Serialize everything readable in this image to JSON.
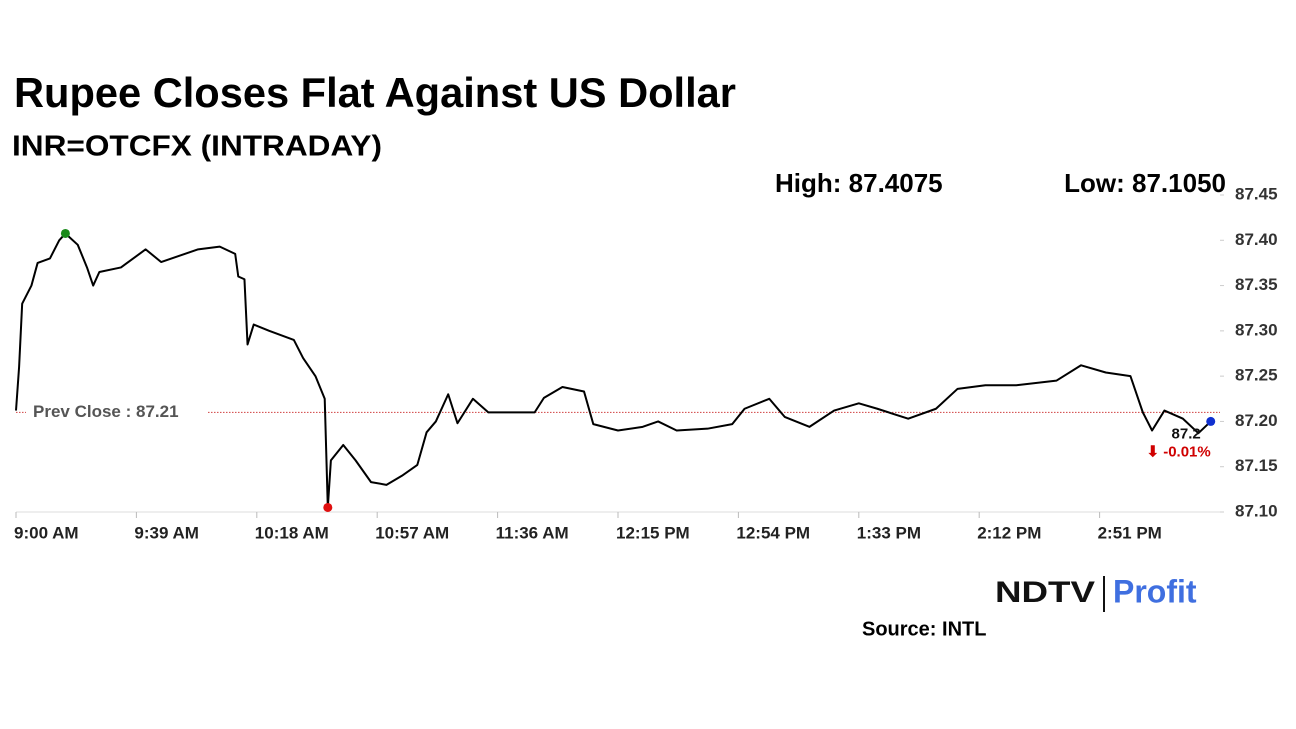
{
  "chart_data": {
    "type": "line",
    "title": "Rupee Closes Flat Against US Dollar",
    "subtitle": "INR=OTCFX (INTRADAY)",
    "high_label": "High: 87.4075",
    "low_label": "Low: 87.1050",
    "prev_close": {
      "value": 87.21,
      "label": "Prev Close : 87.21",
      "color": "#d04040"
    },
    "last_label": "87.2",
    "change_label": "⬇ -0.01%",
    "change_color": "#d00000",
    "high_color": "#1a8a1a",
    "low_color": "#e01010",
    "last_color": "#1030d0",
    "source": "Source: INTL",
    "logo": [
      "NDTV",
      "Profit"
    ],
    "series": [
      {
        "name": "INR=OTCFX",
        "color": "#000000",
        "x": [
          "9:00 AM",
          "9:01 AM",
          "9:02 AM",
          "9:05 AM",
          "9:07 AM",
          "9:11 AM",
          "9:14 AM",
          "9:16 AM",
          "9:20 AM",
          "9:23 AM",
          "9:25 AM",
          "9:27 AM",
          "9:34 AM",
          "9:42 AM",
          "9:47 AM",
          "9:53 AM",
          "9:59 AM",
          "10:06 AM",
          "10:11 AM",
          "10:12 AM",
          "10:14 AM",
          "10:15 AM",
          "10:17 AM",
          "10:22 AM",
          "10:30 AM",
          "10:33 AM",
          "10:37 AM",
          "10:40 AM",
          "10:41 AM",
          "10:42 AM",
          "10:46 AM",
          "10:50 AM",
          "10:55 AM",
          "11:00 AM",
          "11:05 AM",
          "11:10 AM",
          "11:13 AM",
          "11:16 AM",
          "11:20 AM",
          "11:23 AM",
          "11:28 AM",
          "11:33 AM",
          "11:39 AM",
          "11:48 AM",
          "11:51 AM",
          "11:57 AM",
          "12:04 PM",
          "12:07 PM",
          "12:15 PM",
          "12:23 PM",
          "12:28 PM",
          "12:34 PM",
          "12:44 PM",
          "12:52 PM",
          "12:56 PM",
          "1:04 PM",
          "1:09 PM",
          "1:17 PM",
          "1:25 PM",
          "1:33 PM",
          "1:39 PM",
          "1:49 PM",
          "1:58 PM",
          "2:05 PM",
          "2:14 PM",
          "2:24 PM",
          "2:37 PM",
          "2:45 PM",
          "2:53 PM",
          "3:01 PM",
          "3:05 PM",
          "3:08 PM",
          "3:12 PM",
          "3:18 PM",
          "3:23 PM",
          "3:27 PM"
        ],
        "values": [
          87.212,
          87.26,
          87.33,
          87.35,
          87.375,
          87.38,
          87.4,
          87.4075,
          87.395,
          87.37,
          87.35,
          87.365,
          87.37,
          87.39,
          87.376,
          87.383,
          87.39,
          87.393,
          87.385,
          87.36,
          87.357,
          87.285,
          87.307,
          87.3,
          87.29,
          87.27,
          87.25,
          87.225,
          87.105,
          87.157,
          87.174,
          87.157,
          87.133,
          87.13,
          87.14,
          87.152,
          87.188,
          87.2,
          87.23,
          87.198,
          87.225,
          87.21,
          87.21,
          87.21,
          87.226,
          87.238,
          87.233,
          87.197,
          87.19,
          87.194,
          87.2,
          87.19,
          87.192,
          87.197,
          87.214,
          87.225,
          87.205,
          87.194,
          87.212,
          87.22,
          87.214,
          87.203,
          87.214,
          87.236,
          87.24,
          87.24,
          87.245,
          87.262,
          87.254,
          87.25,
          87.21,
          87.19,
          87.212,
          87.203,
          87.187,
          87.2
        ]
      }
    ],
    "xlim": [
      "9:00 AM",
      "3:30 PM"
    ],
    "xticks": [
      "9:00 AM",
      "9:39 AM",
      "10:18 AM",
      "10:57 AM",
      "11:36 AM",
      "12:15 PM",
      "12:54 PM",
      "1:33 PM",
      "2:12 PM",
      "2:51 PM"
    ],
    "ylim": [
      87.1,
      87.45
    ],
    "yticks": [
      {
        "value": 87.1,
        "label": "87.10"
      },
      87.15,
      {
        "value": 87.2,
        "label": "87.20"
      },
      87.25,
      {
        "value": 87.3,
        "label": "87.30"
      },
      87.35,
      {
        "value": 87.4,
        "label": "87.40"
      },
      87.45
    ]
  }
}
